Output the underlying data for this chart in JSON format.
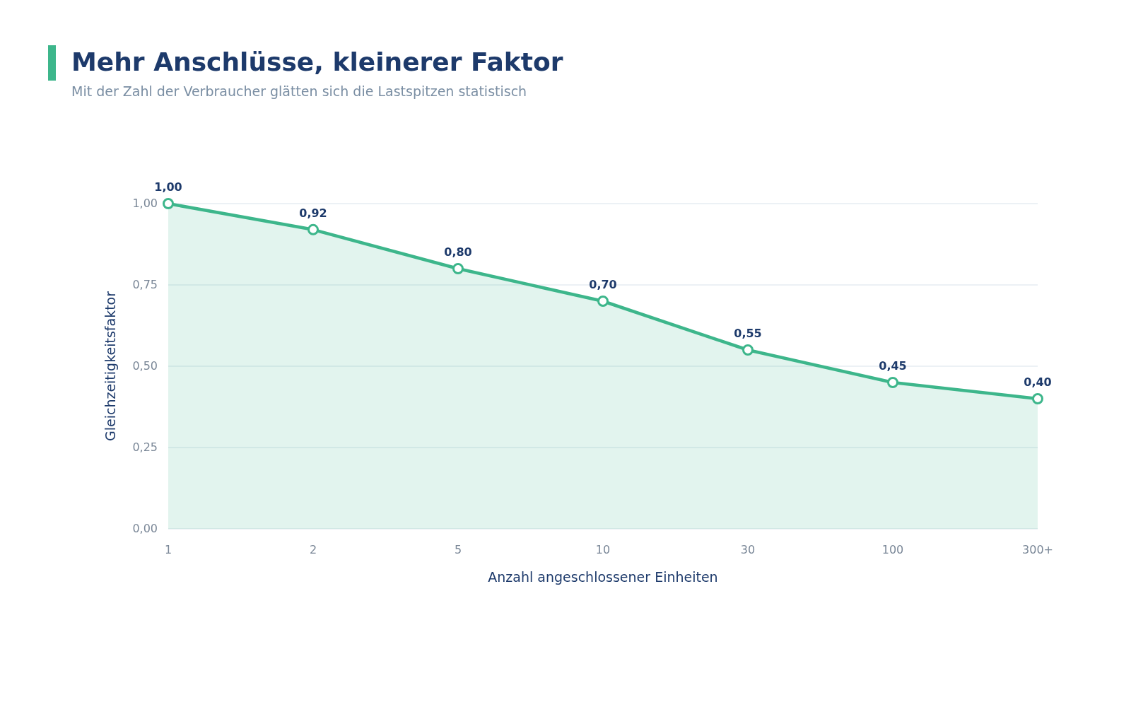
{
  "chart_data": {
    "type": "area",
    "title": "Mehr Anschlüsse, kleinerer Faktor",
    "subtitle": "Mit der Zahl der Verbraucher glätten sich die Lastspitzen statistisch",
    "xlabel": "Anzahl angeschlossener Einheiten",
    "ylabel": "Gleichzeitigkeitsfaktor",
    "categories": [
      "1",
      "2",
      "5",
      "10",
      "30",
      "100",
      "300+"
    ],
    "series": [
      {
        "color": "#3db68b",
        "values": [
          1.0,
          0.92,
          0.8,
          0.7,
          0.55,
          0.45,
          0.4
        ],
        "value_labels": [
          "1,00",
          "0,92",
          "0,80",
          "0,70",
          "0,55",
          "0,45",
          "0,40"
        ]
      }
    ],
    "ylim": [
      0,
      1
    ],
    "yticks": [
      {
        "value": 0,
        "label": "0,00"
      },
      {
        "value": 0.25,
        "label": "0,25"
      },
      {
        "value": 0.5,
        "label": "0,50"
      },
      {
        "value": 0.75,
        "label": "0,75"
      },
      {
        "value": 1,
        "label": "1,00"
      }
    ],
    "grid": "y",
    "marker": "circle",
    "line_style": "solid"
  }
}
